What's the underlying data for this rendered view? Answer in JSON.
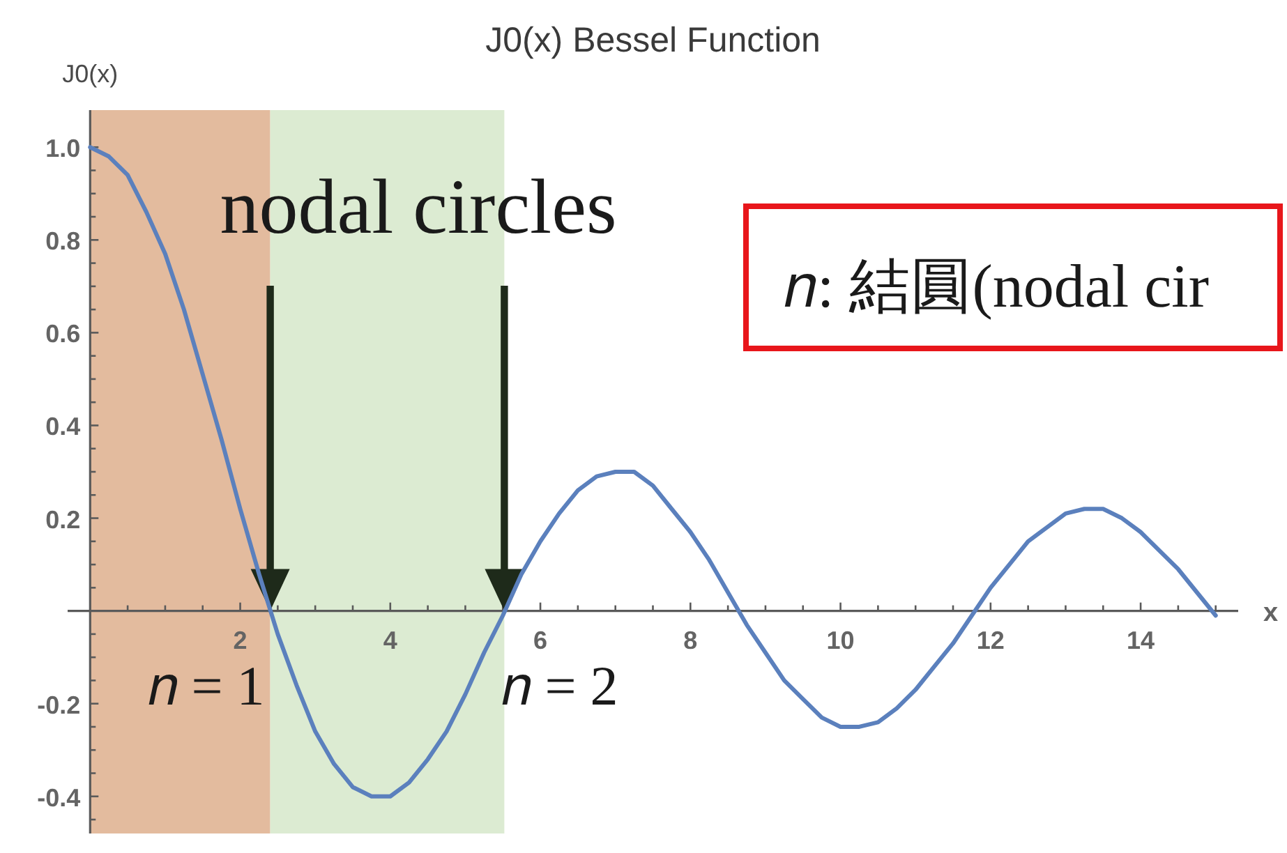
{
  "chart_data": {
    "type": "line",
    "title": "J0(x) Bessel Function",
    "xlabel": "x",
    "ylabel": "J0(x)",
    "x": [
      0,
      0.25,
      0.5,
      0.75,
      1,
      1.25,
      1.5,
      1.75,
      2,
      2.25,
      2.5,
      2.75,
      3,
      3.25,
      3.5,
      3.75,
      4,
      4.25,
      4.5,
      4.75,
      5,
      5.25,
      5.5,
      5.75,
      6,
      6.25,
      6.5,
      6.75,
      7,
      7.25,
      7.5,
      7.75,
      8,
      8.25,
      8.5,
      8.75,
      9,
      9.25,
      9.5,
      9.75,
      10,
      10.25,
      10.5,
      10.75,
      11,
      11.25,
      11.5,
      11.75,
      12,
      12.25,
      12.5,
      12.75,
      13,
      13.25,
      13.5,
      13.75,
      14,
      14.25,
      14.5,
      14.75,
      15
    ],
    "series": [
      {
        "color": "#5b80bd",
        "values": [
          1.0,
          0.98,
          0.94,
          0.86,
          0.77,
          0.65,
          0.51,
          0.37,
          0.22,
          0.08,
          -0.05,
          -0.16,
          -0.26,
          -0.33,
          -0.38,
          -0.4,
          -0.4,
          -0.37,
          -0.32,
          -0.26,
          -0.18,
          -0.09,
          -0.01,
          0.08,
          0.15,
          0.21,
          0.26,
          0.29,
          0.3,
          0.3,
          0.27,
          0.22,
          0.17,
          0.11,
          0.04,
          -0.03,
          -0.09,
          -0.15,
          -0.19,
          -0.23,
          -0.25,
          -0.25,
          -0.24,
          -0.21,
          -0.17,
          -0.12,
          -0.07,
          -0.01,
          0.05,
          0.1,
          0.15,
          0.18,
          0.21,
          0.22,
          0.22,
          0.2,
          0.17,
          0.13,
          0.09,
          0.04,
          -0.01
        ]
      }
    ],
    "xlim": [
      -0.3,
      15.3
    ],
    "ylim": [
      -0.48,
      1.08
    ],
    "xticks": [
      {
        "value": 0.5,
        "label": null
      },
      {
        "value": 1,
        "label": null
      },
      {
        "value": 1.5,
        "label": null
      },
      2,
      {
        "value": 2.5,
        "label": null
      },
      {
        "value": 3,
        "label": null
      },
      {
        "value": 3.5,
        "label": null
      },
      4,
      {
        "value": 4.5,
        "label": null
      },
      {
        "value": 5,
        "label": null
      },
      {
        "value": 5.5,
        "label": null
      },
      6,
      {
        "value": 6.5,
        "label": null
      },
      {
        "value": 7,
        "label": null
      },
      {
        "value": 7.5,
        "label": null
      },
      8,
      {
        "value": 8.5,
        "label": null
      },
      {
        "value": 9,
        "label": null
      },
      {
        "value": 9.5,
        "label": null
      },
      10,
      {
        "value": 10.5,
        "label": null
      },
      {
        "value": 11,
        "label": null
      },
      {
        "value": 11.5,
        "label": null
      },
      12,
      {
        "value": 12.5,
        "label": null
      },
      {
        "value": 13,
        "label": null
      },
      {
        "value": 13.5,
        "label": null
      },
      14,
      {
        "value": 14.5,
        "label": null
      },
      {
        "value": 15,
        "label": null
      }
    ],
    "yticks": [
      {
        "value": -0.45,
        "label": null
      },
      -0.4,
      {
        "value": -0.35,
        "label": null
      },
      {
        "value": -0.3,
        "label": null
      },
      {
        "value": -0.25,
        "label": null
      },
      -0.2,
      {
        "value": -0.15,
        "label": null
      },
      {
        "value": -0.1,
        "label": null
      },
      {
        "value": -0.05,
        "label": null
      },
      {
        "value": 0.05,
        "label": null
      },
      {
        "value": 0.1,
        "label": null
      },
      {
        "value": 0.15,
        "label": null
      },
      0.2,
      {
        "value": 0.25,
        "label": null
      },
      {
        "value": 0.3,
        "label": null
      },
      {
        "value": 0.35,
        "label": null
      },
      0.4,
      {
        "value": 0.45,
        "label": null
      },
      {
        "value": 0.5,
        "label": null
      },
      {
        "value": 0.55,
        "label": null
      },
      0.6,
      {
        "value": 0.65,
        "label": null
      },
      {
        "value": 0.7,
        "label": null
      },
      {
        "value": 0.75,
        "label": null
      },
      0.8,
      {
        "value": 0.85,
        "label": null
      },
      {
        "value": 0.9,
        "label": null
      },
      {
        "value": 0.95,
        "label": null
      },
      {
        "value": 1,
        "label": "1.0"
      }
    ],
    "bands": [
      {
        "axis": "x",
        "from": 0,
        "to": 2.4,
        "color": "#e3bb9e"
      },
      {
        "axis": "x",
        "from": 2.4,
        "to": 5.52,
        "color": "#dcebd2"
      }
    ],
    "annotations": [
      "nodal circles",
      {
        "text": "𝑛 = 1",
        "x": 2.4,
        "y": 0
      },
      {
        "text": "𝑛 = 2",
        "x": 5.52,
        "y": 0
      },
      "𝑛: 結圓(nodal cir"
    ]
  }
}
